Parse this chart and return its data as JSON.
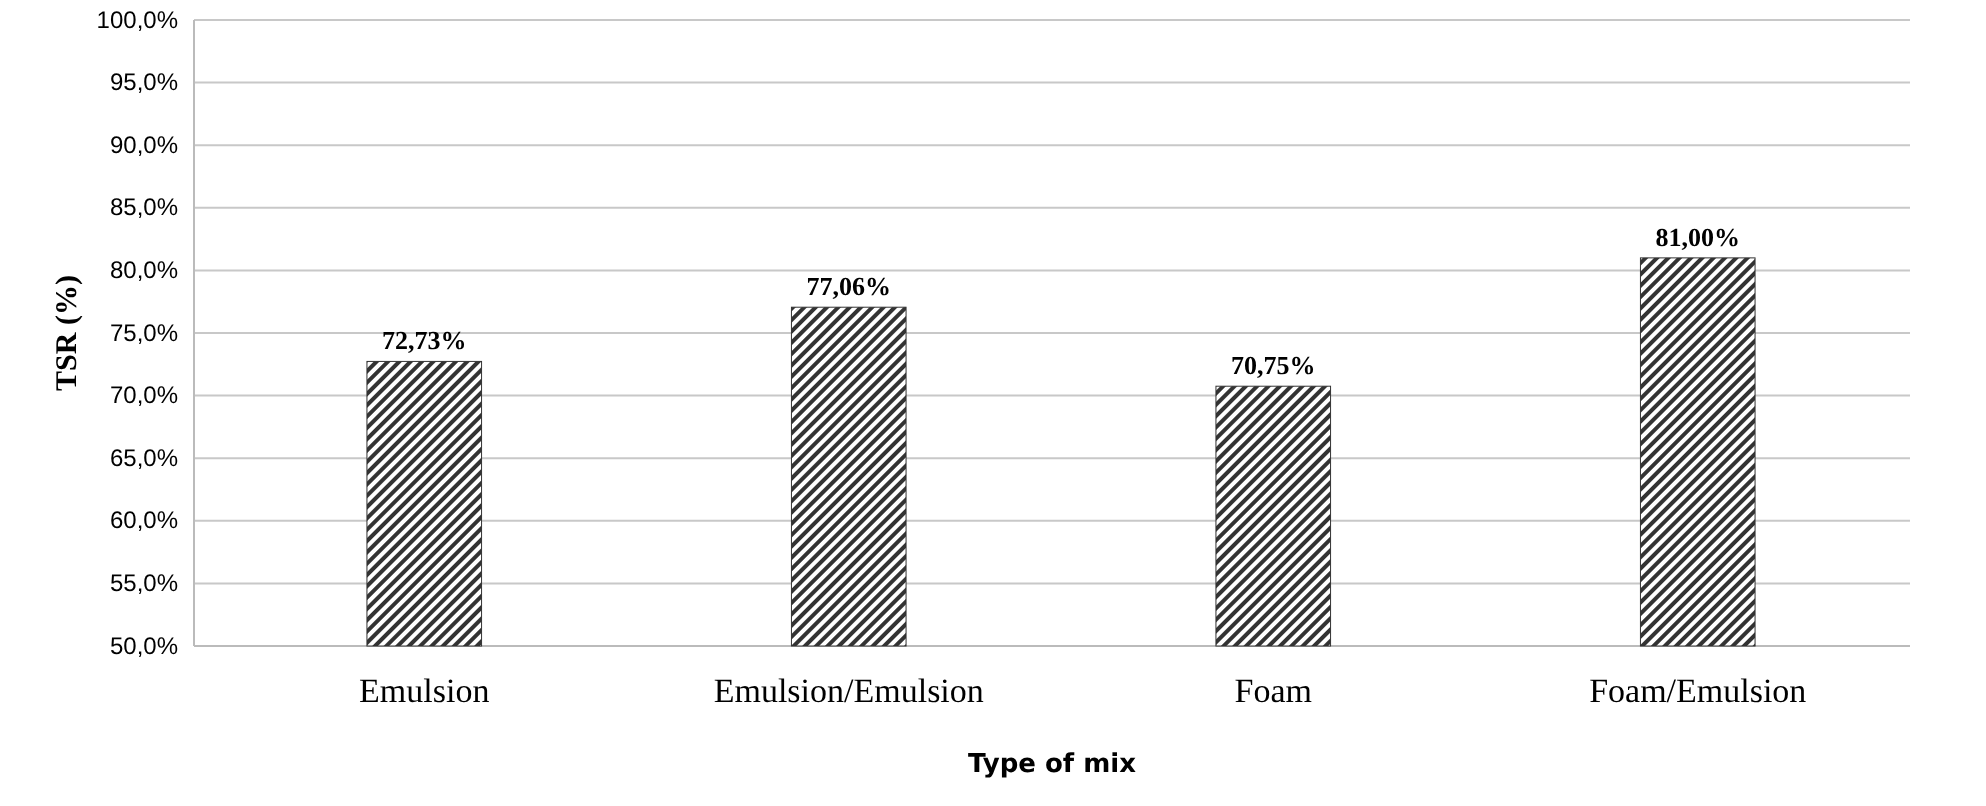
{
  "chart_data": {
    "type": "bar",
    "xlabel": "Type of mix",
    "ylabel": "TSR (%)",
    "categories": [
      "Emulsion",
      "Emulsion/Emulsion",
      "Foam",
      "Foam/Emulsion"
    ],
    "values": [
      72.73,
      77.06,
      70.75,
      81.0
    ],
    "value_labels": [
      "72,73%",
      "77,06%",
      "70,75%",
      "81,00%"
    ],
    "color": "#333333",
    "ylim": [
      50,
      100
    ],
    "yticks": [
      {
        "value": 50,
        "label": "50,0%"
      },
      {
        "value": 55,
        "label": "55,0%"
      },
      {
        "value": 60,
        "label": "60,0%"
      },
      {
        "value": 65,
        "label": "65,0%"
      },
      {
        "value": 70,
        "label": "70,0%"
      },
      {
        "value": 75,
        "label": "75,0%"
      },
      {
        "value": 80,
        "label": "80,0%"
      },
      {
        "value": 85,
        "label": "85,0%"
      },
      {
        "value": 90,
        "label": "90,0%"
      },
      {
        "value": 95,
        "label": "95,0%"
      },
      {
        "value": 100,
        "label": "100,0%"
      }
    ],
    "grid": "y"
  }
}
